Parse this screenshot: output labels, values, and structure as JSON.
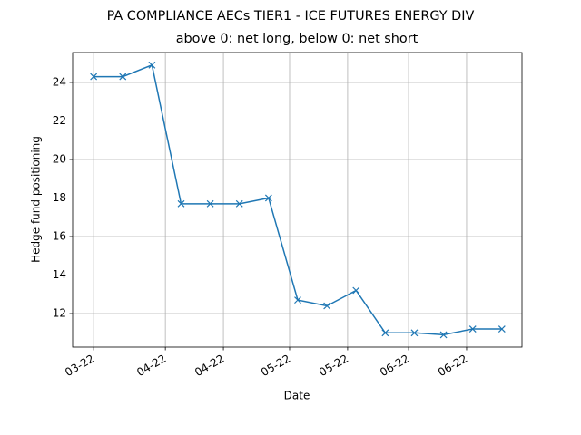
{
  "chart_data": {
    "type": "line",
    "title": "PA COMPLIANCE AECs TIER1 - ICE FUTURES ENERGY DIV",
    "subtitle": "above 0: net long, below 0: net short",
    "xlabel": "Date",
    "ylabel": "Hedge fund positioning",
    "categories": [
      null,
      null,
      null,
      null,
      null,
      null,
      null,
      null,
      null,
      null,
      null,
      null,
      null,
      null,
      null
    ],
    "series": [
      {
        "name": "Hedge fund positioning",
        "color": "#1f77b4",
        "marker": "x",
        "values": [
          24.3,
          24.3,
          24.9,
          17.7,
          17.7,
          17.7,
          18.0,
          12.7,
          12.4,
          13.2,
          11.0,
          11.0,
          10.9,
          11.2,
          11.2
        ]
      }
    ],
    "xlim": [
      -0.72,
      14.69
    ],
    "xticks": [
      {
        "value": 0,
        "label": "03-22"
      },
      {
        "value": 2.46,
        "label": "04-22"
      },
      {
        "value": 4.45,
        "label": "04-22"
      },
      {
        "value": 6.72,
        "label": "05-22"
      },
      {
        "value": 8.71,
        "label": "05-22"
      },
      {
        "value": 10.8,
        "label": "06-22"
      },
      {
        "value": 12.79,
        "label": "06-22"
      }
    ],
    "ylim": [
      10.26,
      25.55
    ],
    "yticks": [
      12,
      14,
      16,
      18,
      20,
      22,
      24
    ],
    "grid": true
  }
}
